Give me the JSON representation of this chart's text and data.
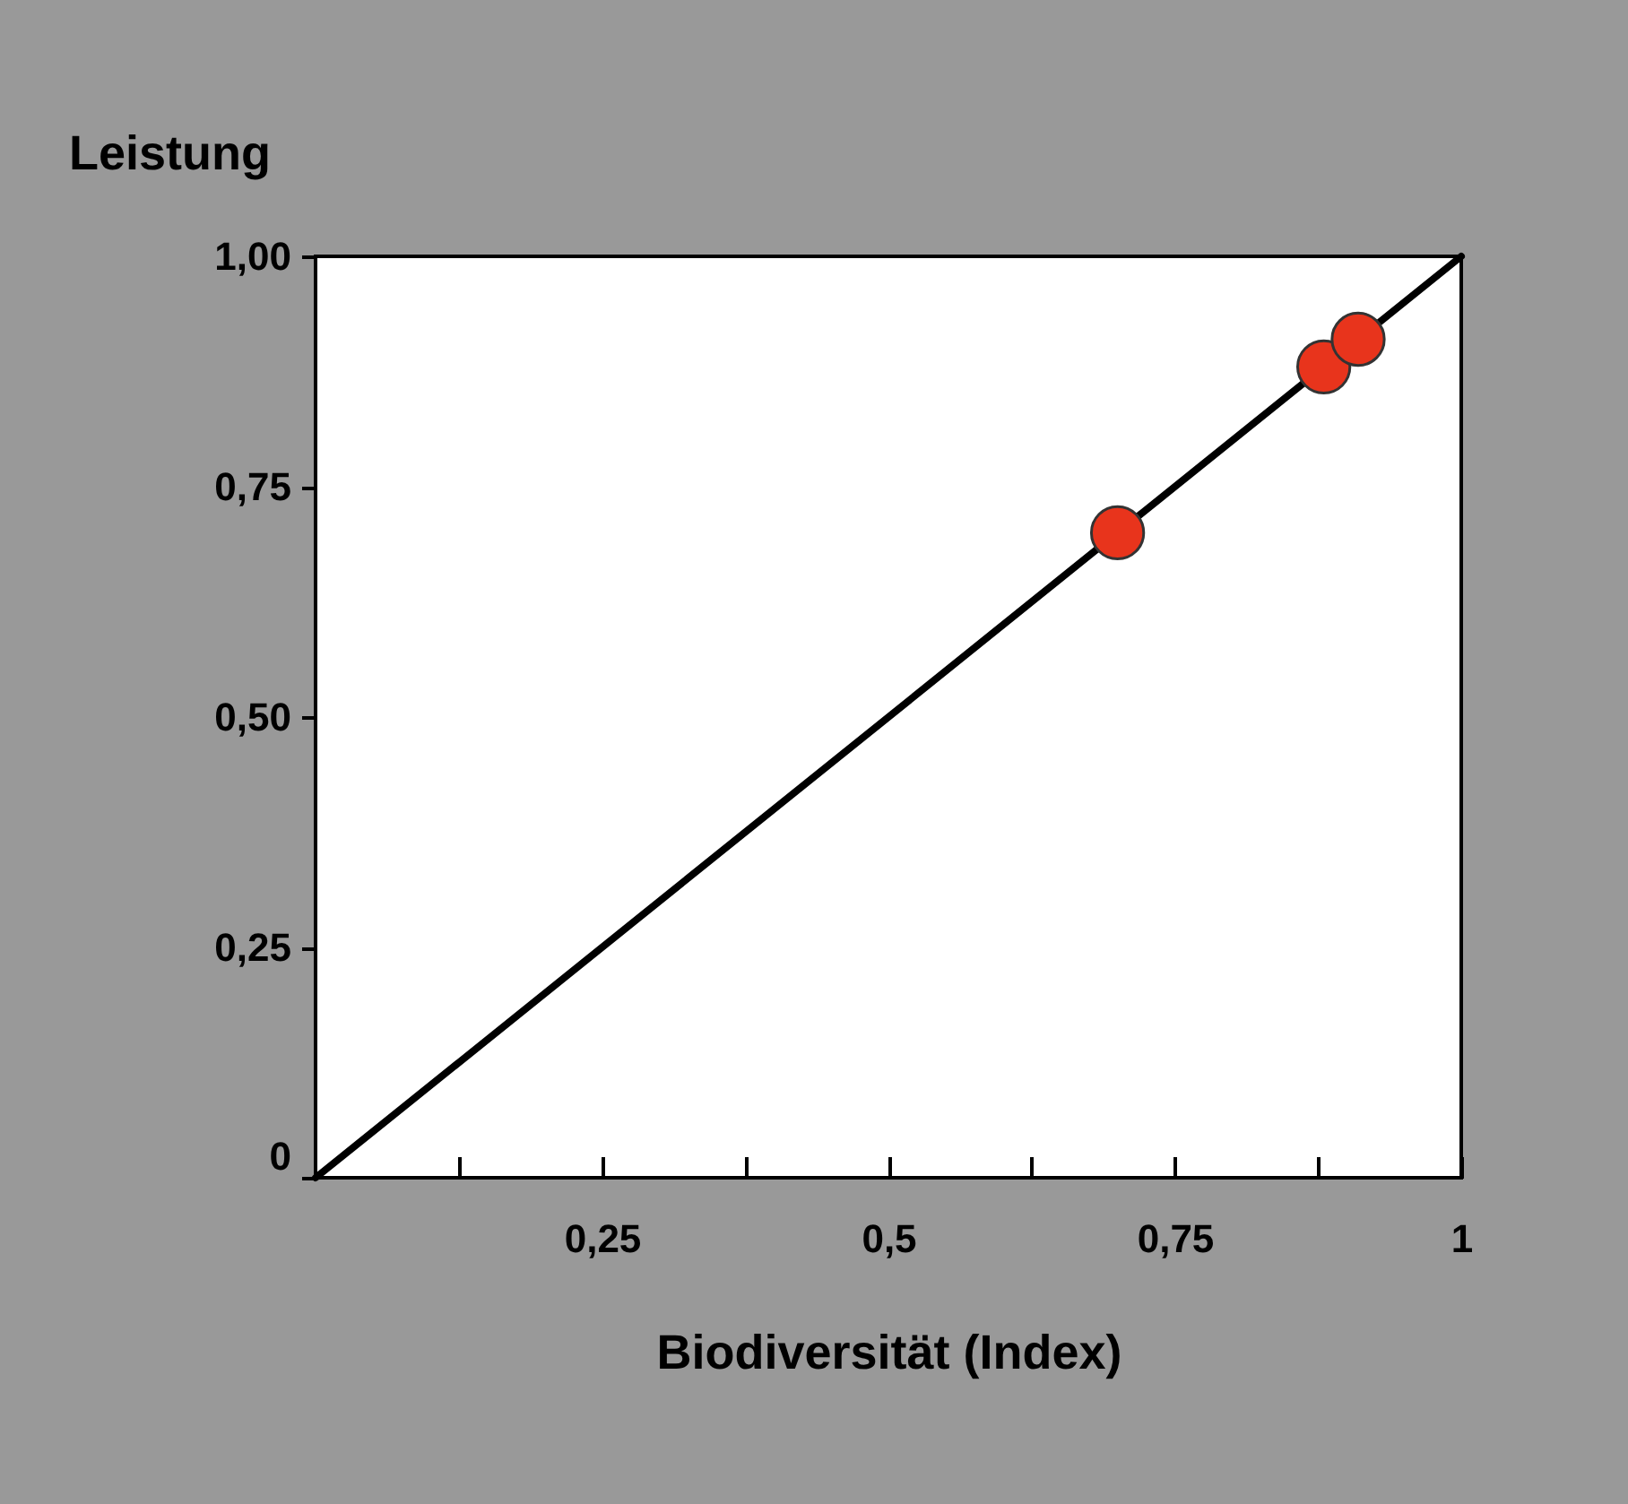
{
  "chart_data": {
    "type": "scatter",
    "ylabel": "Leistung",
    "xlabel": "Biodiversität (Index)",
    "xlim": [
      0,
      1
    ],
    "ylim": [
      0,
      1
    ],
    "xticks": [
      {
        "value": 0.125,
        "label": null
      },
      {
        "value": 0.25,
        "label": "0,25"
      },
      {
        "value": 0.375,
        "label": null
      },
      {
        "value": 0.5,
        "label": "0,5"
      },
      {
        "value": 0.625,
        "label": null
      },
      {
        "value": 0.75,
        "label": "0,75"
      },
      {
        "value": 0.875,
        "label": null
      },
      1
    ],
    "yticks": [
      0,
      {
        "value": 0.25,
        "label": "0,25"
      },
      {
        "value": 0.5,
        "label": "0,50"
      },
      {
        "value": 0.75,
        "label": "0,75"
      },
      {
        "value": 1,
        "label": "1,00"
      }
    ],
    "series": [
      {
        "type": "line",
        "marker": "none",
        "color": "#000000",
        "x": [
          0,
          1
        ],
        "values": [
          0,
          1
        ]
      },
      {
        "color": "#e8341c",
        "x": [
          0.7,
          0.88,
          0.91
        ],
        "values": [
          0.7,
          0.88,
          0.91
        ]
      }
    ],
    "marker": "circle",
    "grid": false
  }
}
